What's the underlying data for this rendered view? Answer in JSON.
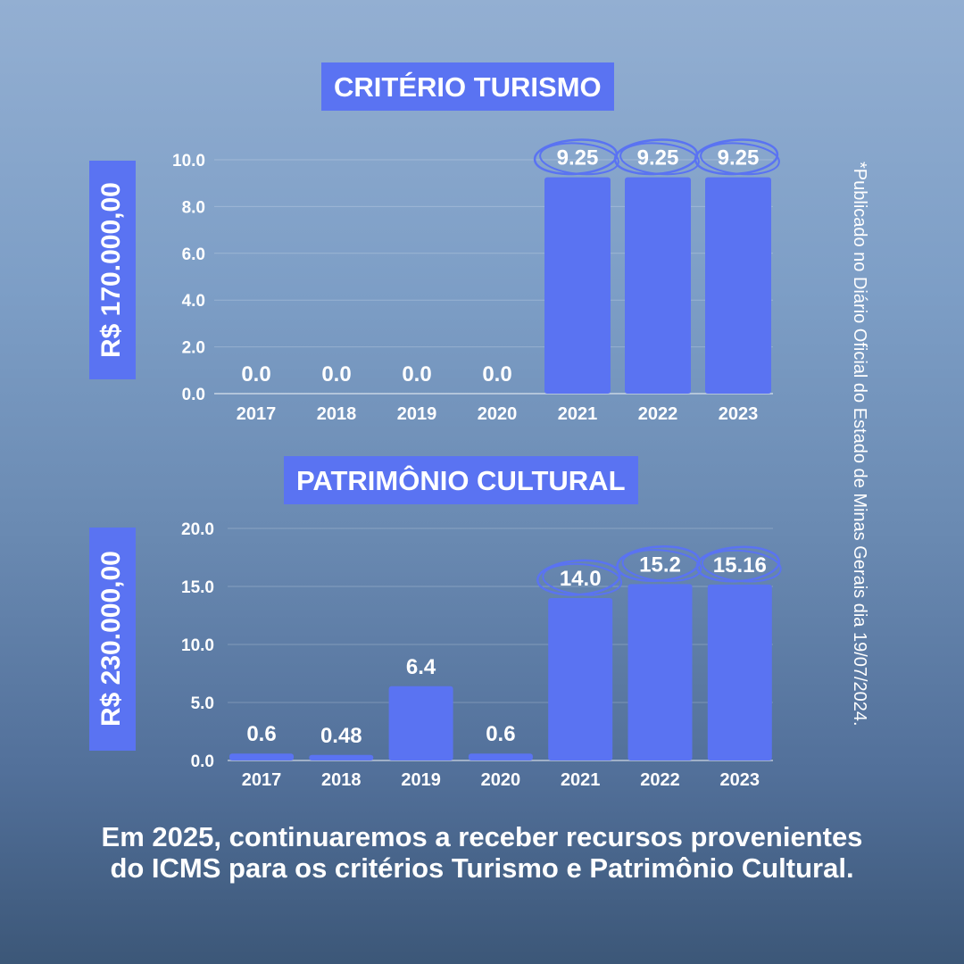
{
  "accent": "#5a73f2",
  "chart_data": [
    {
      "type": "bar",
      "title": "CRITÉRIO TURISMO",
      "ylabel": "R$ 170.000,00",
      "categories": [
        "2017",
        "2018",
        "2019",
        "2020",
        "2021",
        "2022",
        "2023"
      ],
      "values": [
        0,
        0,
        0,
        0,
        9.25,
        9.25,
        9.25
      ],
      "labels": [
        "0.0",
        "0.0",
        "0.0",
        "0.0",
        "9.25",
        "9.25",
        "9.25"
      ],
      "highlighted": [
        "2021",
        "2022",
        "2023"
      ],
      "ylim": [
        0,
        10
      ],
      "yticks": [
        "0.0",
        "2.0",
        "4.0",
        "6.0",
        "8.0",
        "10.0"
      ],
      "grid": true
    },
    {
      "type": "bar",
      "title": "PATRIMÔNIO CULTURAL",
      "ylabel": "R$ 230.000,00",
      "categories": [
        "2017",
        "2018",
        "2019",
        "2020",
        "2021",
        "2022",
        "2023"
      ],
      "values": [
        0.6,
        0.48,
        6.4,
        0.6,
        14.0,
        15.2,
        15.16
      ],
      "labels": [
        "0.6",
        "0.48",
        "6.4",
        "0.6",
        "14.0",
        "15.2",
        "15.16"
      ],
      "highlighted": [
        "2021",
        "2022",
        "2023"
      ],
      "ylim": [
        0,
        20
      ],
      "yticks": [
        "0.0",
        "5.0",
        "10.0",
        "15.0",
        "20.0"
      ],
      "grid": true
    }
  ],
  "note": "*Publicado no Diário Oficial do Estado de Minas Gerais dia 19/07/2024.",
  "footer": "Em 2025, continuaremos a receber recursos provenientes do ICMS para os critérios Turismo e Patrimônio Cultural."
}
